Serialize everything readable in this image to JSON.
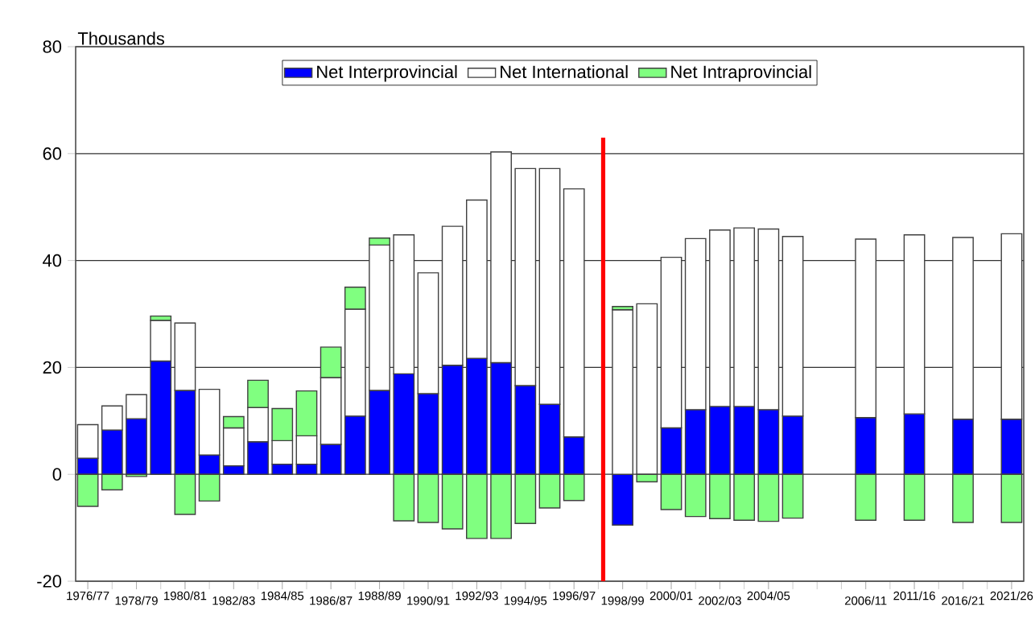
{
  "chart_data": {
    "type": "bar",
    "stacked": true,
    "ylabel": "Thousands",
    "categories": [
      "1976/77",
      null,
      "1978/79",
      null,
      "1980/81",
      null,
      "1982/83",
      null,
      "1984/85",
      null,
      "1986/87",
      null,
      "1988/89",
      null,
      "1990/91",
      null,
      "1992/93",
      null,
      "1994/95",
      null,
      "1996/97",
      null,
      "1998/99",
      null,
      "2000/01",
      null,
      "2002/03",
      null,
      "2004/05",
      null,
      null,
      null,
      "2006/11",
      null,
      "2011/16",
      null,
      "2016/21",
      null,
      "2021/26"
    ],
    "series": [
      {
        "name": "Net Interprovincial",
        "color": "#0000ff",
        "values": [
          3.0,
          8.3,
          10.4,
          21.2,
          15.7,
          3.6,
          1.6,
          6.1,
          1.9,
          1.9,
          5.6,
          10.9,
          15.7,
          18.8,
          15.1,
          20.4,
          21.7,
          20.9,
          16.6,
          13.1,
          7.0,
          null,
          -9.5,
          null,
          8.7,
          12.1,
          12.7,
          12.7,
          12.1,
          10.9,
          null,
          null,
          10.6,
          null,
          11.3,
          null,
          10.3,
          null,
          10.3
        ]
      },
      {
        "name": "Net International",
        "color": "#ffffff",
        "values": [
          6.3,
          4.5,
          4.5,
          7.6,
          12.6,
          12.3,
          7.1,
          6.4,
          4.4,
          5.3,
          12.5,
          20.0,
          27.2,
          26.0,
          22.6,
          26.0,
          29.6,
          39.4,
          40.6,
          44.1,
          46.4,
          null,
          30.8,
          31.9,
          31.9,
          32.0,
          33.0,
          33.4,
          33.8,
          33.6,
          null,
          null,
          33.4,
          null,
          33.5,
          null,
          34.0,
          null,
          34.7
        ]
      },
      {
        "name": "Net Intraprovincial",
        "color": "#80ff80",
        "values": [
          -6.0,
          -2.9,
          -0.4,
          0.8,
          -7.5,
          -5.0,
          2.1,
          5.1,
          6.0,
          8.4,
          5.7,
          4.1,
          1.3,
          -8.7,
          -9.0,
          -10.2,
          -12.0,
          -12.0,
          -9.2,
          -6.3,
          -4.9,
          null,
          0.6,
          -1.4,
          -6.6,
          -7.9,
          -8.3,
          -8.6,
          -8.8,
          -8.2,
          null,
          null,
          -8.6,
          null,
          -8.6,
          null,
          -9.0,
          null,
          -9.0
        ]
      }
    ],
    "ylim": [
      -20,
      80
    ],
    "yticks": [
      -20,
      0,
      20,
      40,
      60,
      80
    ],
    "grid": "y",
    "legend": "top"
  }
}
